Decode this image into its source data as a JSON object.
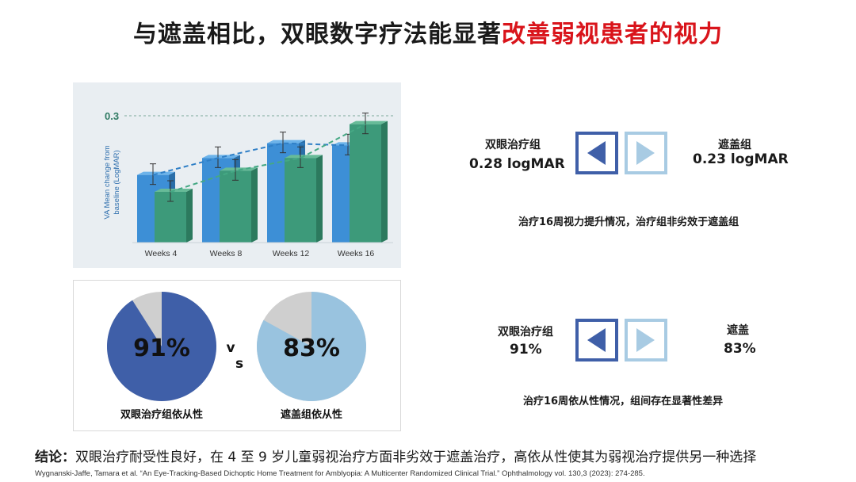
{
  "title": {
    "plain": "与遮盖相比，双眼数字疗法能显著",
    "highlight": "改善弱视患者的视力"
  },
  "chart_data": [
    {
      "type": "bar",
      "categories": [
        "Weeks 4",
        "Weeks 8",
        "Weeks 12",
        "Weeks 16"
      ],
      "series": [
        {
          "values": [
            0.16,
            0.2,
            0.235,
            0.23
          ],
          "color": "#3d8fd6"
        },
        {
          "values": [
            0.12,
            0.17,
            0.2,
            0.28
          ],
          "color": "#3d9a7a"
        }
      ],
      "ylabel": "VA Mean change from baseline (LogMAR)",
      "y_tick_label": "0.3",
      "ylim": [
        0,
        0.3
      ]
    },
    {
      "type": "pie",
      "slices": [
        {
          "label": "双眼治疗组依从性",
          "value": 91,
          "display": "91%",
          "color": "#3f5fa8"
        },
        {
          "label": "遮盖组依从性",
          "value": 83,
          "display": "83%",
          "color": "#99c3df"
        }
      ],
      "remainder_color": "#cfcfcf",
      "vs_text": [
        "v",
        "s"
      ]
    }
  ],
  "comparison1": {
    "left_label": "双眼治疗组",
    "left_value": "0.28 logMAR",
    "right_label": "遮盖组",
    "right_value": "0.23 logMAR",
    "note": "治疗16周视力提升情况，治疗组非劣效于遮盖组"
  },
  "comparison2": {
    "left_label": "双眼治疗组",
    "left_value": "91%",
    "right_label": "遮盖",
    "right_value": "83%",
    "note": "治疗16周依从性情况，组间存在显著性差异"
  },
  "icons": {
    "active_arrow": "left-arrow-box-icon",
    "inactive_arrow": "right-arrow-box-icon",
    "active_color": "#3f5fa8",
    "inactive_color": "#a8cbe3"
  },
  "conclusion": {
    "lead": "结论：",
    "text": "双眼治疗耐受性良好，在 4 至 9 岁儿童弱视治疗方面非劣效于遮盖治疗，高依从性使其为弱视治疗提供另一种选择"
  },
  "citation": "Wygnanski-Jaffe, Tamara et al. “An Eye-Tracking-Based Dichoptic Home Treatment for Amblyopia: A Multicenter Randomized Clinical Trial.” Ophthalmology vol. 130,3 (2023): 274-285."
}
